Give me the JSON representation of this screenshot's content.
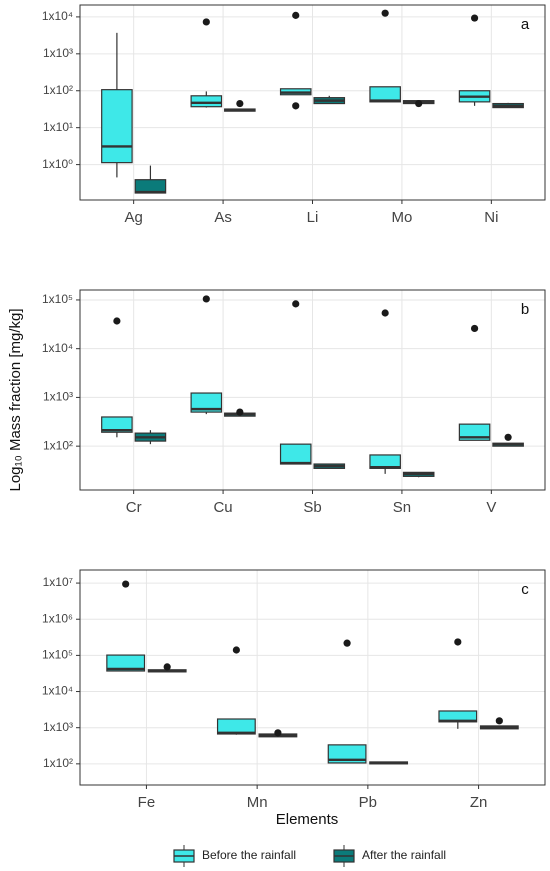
{
  "y_label": "Log₁₀ Mass fraction [mg/kg]",
  "x_label": "Elements",
  "legend": [
    {
      "name": "Before the rainfall",
      "color": "#3ee8e8"
    },
    {
      "name": "After the rainfall",
      "color": "#0b7b7a"
    }
  ],
  "chart_data": [
    {
      "type": "box",
      "panel_label": "a",
      "log_scale": true,
      "grid": true,
      "categories": [
        "Ag",
        "As",
        "Li",
        "Mo",
        "Ni"
      ],
      "ylim": [
        0.11,
        21000
      ],
      "yticks": [
        {
          "value": 1,
          "label": "1x10⁰"
        },
        {
          "value": 10,
          "label": "1x10¹"
        },
        {
          "value": 100,
          "label": "1x10²"
        },
        {
          "value": 1000,
          "label": "1x10³"
        },
        {
          "value": 10000,
          "label": "1x10⁴"
        }
      ],
      "series": [
        {
          "values": [
            {
              "low": 0.45,
              "q1": 1.13,
              "median": 3.1,
              "q3": 107,
              "high": 3700,
              "outliers": []
            },
            {
              "low": 35,
              "q1": 37,
              "median": 47,
              "q3": 73,
              "high": 96,
              "outliers": [
                7300
              ]
            },
            {
              "low": 78,
              "q1": 78,
              "median": 89,
              "q3": 113,
              "high": 113,
              "outliers": [
                11000,
                39
              ]
            },
            {
              "low": 50,
              "q1": 50,
              "median": 54,
              "q3": 128,
              "high": 128,
              "outliers": [
                12600
              ]
            },
            {
              "low": 39,
              "q1": 50,
              "median": 69,
              "q3": 100,
              "high": 100,
              "outliers": [
                9300
              ]
            }
          ]
        },
        {
          "values": [
            {
              "low": 0.17,
              "q1": 0.17,
              "median": 0.18,
              "q3": 0.39,
              "high": 0.94,
              "outliers": []
            },
            {
              "low": 28,
              "q1": 28,
              "median": 30,
              "q3": 32,
              "high": 32,
              "outliers": [
                45
              ]
            },
            {
              "low": 45,
              "q1": 45,
              "median": 54,
              "q3": 65,
              "high": 73,
              "outliers": []
            },
            {
              "low": 45,
              "q1": 45,
              "median": 50,
              "q3": 54,
              "high": 54,
              "outliers": [
                45
              ]
            },
            {
              "low": 35,
              "q1": 35,
              "median": 39,
              "q3": 45,
              "high": 47,
              "outliers": []
            }
          ]
        }
      ]
    },
    {
      "type": "box",
      "panel_label": "b",
      "log_scale": true,
      "grid": true,
      "categories": [
        "Cr",
        "Cu",
        "Sb",
        "Sn",
        "V"
      ],
      "ylim": [
        12.6,
        160000
      ],
      "yticks": [
        {
          "value": 100,
          "label": "1x10²"
        },
        {
          "value": 1000,
          "label": "1x10³"
        },
        {
          "value": 10000,
          "label": "1x10⁴"
        },
        {
          "value": 100000,
          "label": "1x10⁵"
        }
      ],
      "series": [
        {
          "values": [
            {
              "low": 152,
              "q1": 193,
              "median": 213,
              "q3": 397,
              "high": 397,
              "outliers": [
                37000
              ]
            },
            {
              "low": 454,
              "q1": 500,
              "median": 575,
              "q3": 1230,
              "high": 1230,
              "outliers": [
                105000
              ]
            },
            {
              "low": 43,
              "q1": 43,
              "median": 45,
              "q3": 110,
              "high": 110,
              "outliers": [
                83000
              ]
            },
            {
              "low": 27,
              "q1": 35,
              "median": 37,
              "q3": 66,
              "high": 66,
              "outliers": [
                54000
              ]
            },
            {
              "low": 132,
              "q1": 132,
              "median": 152,
              "q3": 283,
              "high": 283,
              "outliers": [
                26000
              ]
            }
          ]
        },
        {
          "values": [
            {
              "low": 110,
              "q1": 127,
              "median": 152,
              "q3": 185,
              "high": 213,
              "outliers": []
            },
            {
              "low": 413,
              "q1": 413,
              "median": 454,
              "q3": 476,
              "high": 476,
              "outliers": [
                500
              ]
            },
            {
              "low": 35,
              "q1": 35,
              "median": 39,
              "q3": 43,
              "high": 43,
              "outliers": []
            },
            {
              "low": 23,
              "q1": 24,
              "median": 27,
              "q3": 29,
              "high": 29,
              "outliers": []
            },
            {
              "low": 100,
              "q1": 100,
              "median": 110,
              "q3": 115,
              "high": 115,
              "outliers": [
                152
              ]
            }
          ]
        }
      ]
    },
    {
      "type": "box",
      "panel_label": "c",
      "log_scale": true,
      "grid": true,
      "categories": [
        "Fe",
        "Mn",
        "Pb",
        "Zn"
      ],
      "ylim": [
        26,
        23000000
      ],
      "yticks": [
        {
          "value": 100,
          "label": "1x10²"
        },
        {
          "value": 1000,
          "label": "1x10³"
        },
        {
          "value": 10000,
          "label": "1x10⁴"
        },
        {
          "value": 100000,
          "label": "1x10⁵"
        },
        {
          "value": 1000000,
          "label": "1x10⁶"
        },
        {
          "value": 10000000,
          "label": "1x10⁷"
        }
      ],
      "series": [
        {
          "values": [
            {
              "low": 37000,
              "q1": 37000,
              "median": 42000,
              "q3": 102000,
              "high": 102000,
              "outliers": [
                9400000
              ]
            },
            {
              "low": 640,
              "q1": 670,
              "median": 720,
              "q3": 1740,
              "high": 1740,
              "outliers": [
                141000
              ]
            },
            {
              "low": 106,
              "q1": 106,
              "median": 129,
              "q3": 335,
              "high": 335,
              "outliers": [
                218000
              ]
            },
            {
              "low": 930,
              "q1": 1450,
              "median": 1550,
              "q3": 2900,
              "high": 2900,
              "outliers": [
                235000
              ]
            }
          ]
        },
        {
          "values": [
            {
              "low": 35000,
              "q1": 35000,
              "median": 37000,
              "q3": 40000,
              "high": 40000,
              "outliers": [
                48000
              ]
            },
            {
              "low": 560,
              "q1": 560,
              "median": 610,
              "q3": 670,
              "high": 670,
              "outliers": [
                720
              ]
            },
            {
              "low": 100,
              "q1": 100,
              "median": 106,
              "q3": 113,
              "high": 113,
              "outliers": []
            },
            {
              "low": 930,
              "q1": 930,
              "median": 1000,
              "q3": 1120,
              "high": 1120,
              "outliers": [
                1550
              ]
            }
          ]
        }
      ]
    }
  ]
}
